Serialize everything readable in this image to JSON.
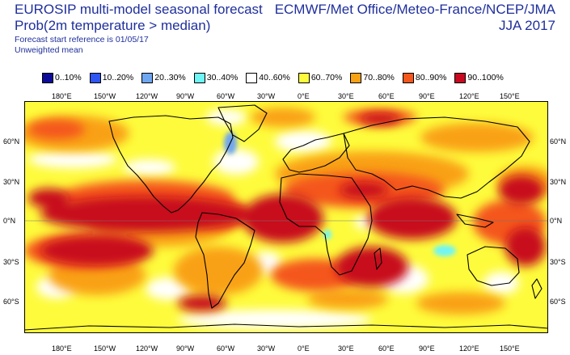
{
  "header": {
    "title_line1": "EUROSIP multi-model seasonal forecast",
    "title_line2": "Prob(2m temperature > median)",
    "note_line1": "Forecast start reference is 01/05/17",
    "note_line2": "Unweighted mean",
    "source": "ECMWF/Met Office/Meteo-France/NCEP/JMA",
    "period": "JJA 2017"
  },
  "legend": [
    {
      "label": "0..10%",
      "color": "#0c0c98"
    },
    {
      "label": "10..20%",
      "color": "#2f56f2"
    },
    {
      "label": "20..30%",
      "color": "#6fa6ef"
    },
    {
      "label": "30..40%",
      "color": "#6ef6f6"
    },
    {
      "label": "40..60%",
      "color": "#ffffff"
    },
    {
      "label": "60..70%",
      "color": "#fefb3c"
    },
    {
      "label": "70..80%",
      "color": "#f9a115"
    },
    {
      "label": "80..90%",
      "color": "#f4561b"
    },
    {
      "label": "90..100%",
      "color": "#c8091f"
    }
  ],
  "lon_ticks": [
    "180°E",
    "150°W",
    "120°W",
    "90°W",
    "60°W",
    "30°W",
    "0°E",
    "30°E",
    "60°E",
    "90°E",
    "120°E",
    "150°E"
  ],
  "lat_ticks_left": [
    "60°N",
    "30°N",
    "0°N",
    "30°S",
    "60°S"
  ],
  "lat_ticks_right": [
    "60°N",
    "30°N",
    "0°N",
    "30°S",
    "60°S"
  ]
}
